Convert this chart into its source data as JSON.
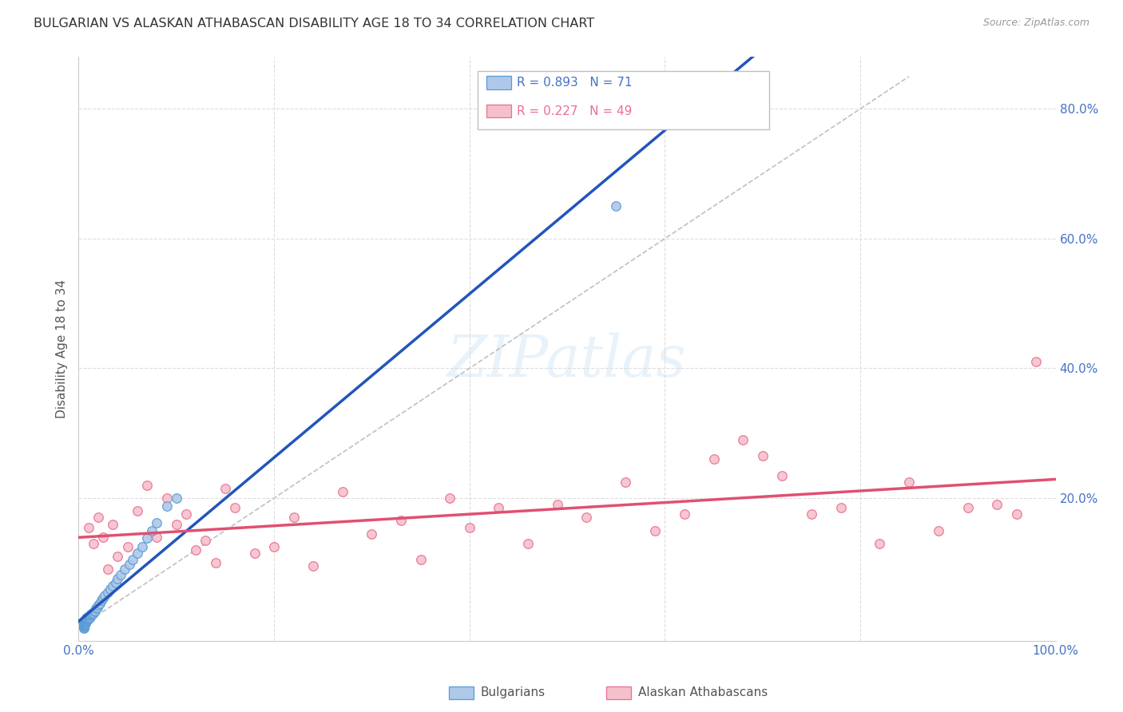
{
  "title": "BULGARIAN VS ALASKAN ATHABASCAN DISABILITY AGE 18 TO 34 CORRELATION CHART",
  "source": "Source: ZipAtlas.com",
  "ylabel": "Disability Age 18 to 34",
  "xlim": [
    0.0,
    1.0
  ],
  "ylim": [
    -0.02,
    0.88
  ],
  "bulgarian_color": "#adc8e8",
  "bulgarian_edge_color": "#5b9bd5",
  "athabascan_color": "#f5c0cc",
  "athabascan_edge_color": "#e87090",
  "bulgarian_line_color": "#2255bb",
  "athabascan_line_color": "#e05070",
  "ref_line_color": "#c0c0c0",
  "axis_color": "#4472c4",
  "axis_label_color": "#555555",
  "bg_color": "#ffffff",
  "grid_color": "#dddddd",
  "title_color": "#333333",
  "R_bulgarian": 0.893,
  "N_bulgarian": 71,
  "R_athabascan": 0.227,
  "N_athabascan": 49,
  "bulgarian_scatter_x": [
    0.005,
    0.005,
    0.005,
    0.005,
    0.005,
    0.005,
    0.005,
    0.005,
    0.005,
    0.005,
    0.006,
    0.006,
    0.006,
    0.006,
    0.006,
    0.006,
    0.006,
    0.006,
    0.007,
    0.007,
    0.007,
    0.007,
    0.007,
    0.007,
    0.008,
    0.008,
    0.008,
    0.008,
    0.008,
    0.009,
    0.009,
    0.009,
    0.009,
    0.01,
    0.01,
    0.01,
    0.01,
    0.011,
    0.011,
    0.012,
    0.012,
    0.013,
    0.013,
    0.014,
    0.015,
    0.016,
    0.017,
    0.018,
    0.019,
    0.02,
    0.022,
    0.023,
    0.025,
    0.027,
    0.03,
    0.032,
    0.035,
    0.038,
    0.04,
    0.043,
    0.047,
    0.052,
    0.055,
    0.06,
    0.065,
    0.07,
    0.075,
    0.08,
    0.09,
    0.1,
    0.55
  ],
  "bulgarian_scatter_y": [
    0.0,
    0.001,
    0.002,
    0.003,
    0.003,
    0.004,
    0.005,
    0.005,
    0.006,
    0.006,
    0.006,
    0.007,
    0.007,
    0.008,
    0.008,
    0.009,
    0.01,
    0.011,
    0.007,
    0.008,
    0.009,
    0.01,
    0.011,
    0.012,
    0.01,
    0.011,
    0.012,
    0.013,
    0.015,
    0.012,
    0.013,
    0.014,
    0.016,
    0.014,
    0.015,
    0.016,
    0.018,
    0.016,
    0.018,
    0.017,
    0.019,
    0.02,
    0.022,
    0.021,
    0.023,
    0.025,
    0.027,
    0.03,
    0.032,
    0.035,
    0.038,
    0.042,
    0.046,
    0.05,
    0.055,
    0.06,
    0.065,
    0.07,
    0.076,
    0.082,
    0.09,
    0.098,
    0.105,
    0.115,
    0.125,
    0.138,
    0.15,
    0.162,
    0.188,
    0.2,
    0.65
  ],
  "athabascan_scatter_x": [
    0.01,
    0.015,
    0.02,
    0.025,
    0.03,
    0.035,
    0.04,
    0.05,
    0.06,
    0.07,
    0.08,
    0.09,
    0.1,
    0.11,
    0.12,
    0.13,
    0.14,
    0.15,
    0.16,
    0.18,
    0.2,
    0.22,
    0.24,
    0.27,
    0.3,
    0.33,
    0.35,
    0.38,
    0.4,
    0.43,
    0.46,
    0.49,
    0.52,
    0.56,
    0.59,
    0.62,
    0.65,
    0.68,
    0.7,
    0.72,
    0.75,
    0.78,
    0.82,
    0.85,
    0.88,
    0.91,
    0.94,
    0.96,
    0.98
  ],
  "athabascan_scatter_y": [
    0.155,
    0.13,
    0.17,
    0.14,
    0.09,
    0.16,
    0.11,
    0.125,
    0.18,
    0.22,
    0.14,
    0.2,
    0.16,
    0.175,
    0.12,
    0.135,
    0.1,
    0.215,
    0.185,
    0.115,
    0.125,
    0.17,
    0.095,
    0.21,
    0.145,
    0.165,
    0.105,
    0.2,
    0.155,
    0.185,
    0.13,
    0.19,
    0.17,
    0.225,
    0.15,
    0.175,
    0.26,
    0.29,
    0.265,
    0.235,
    0.175,
    0.185,
    0.13,
    0.225,
    0.15,
    0.185,
    0.19,
    0.175,
    0.41
  ],
  "watermark_text": "ZIPatlas",
  "legend_bulgarian_label": "Bulgarians",
  "legend_athabascan_label": "Alaskan Athabascans"
}
